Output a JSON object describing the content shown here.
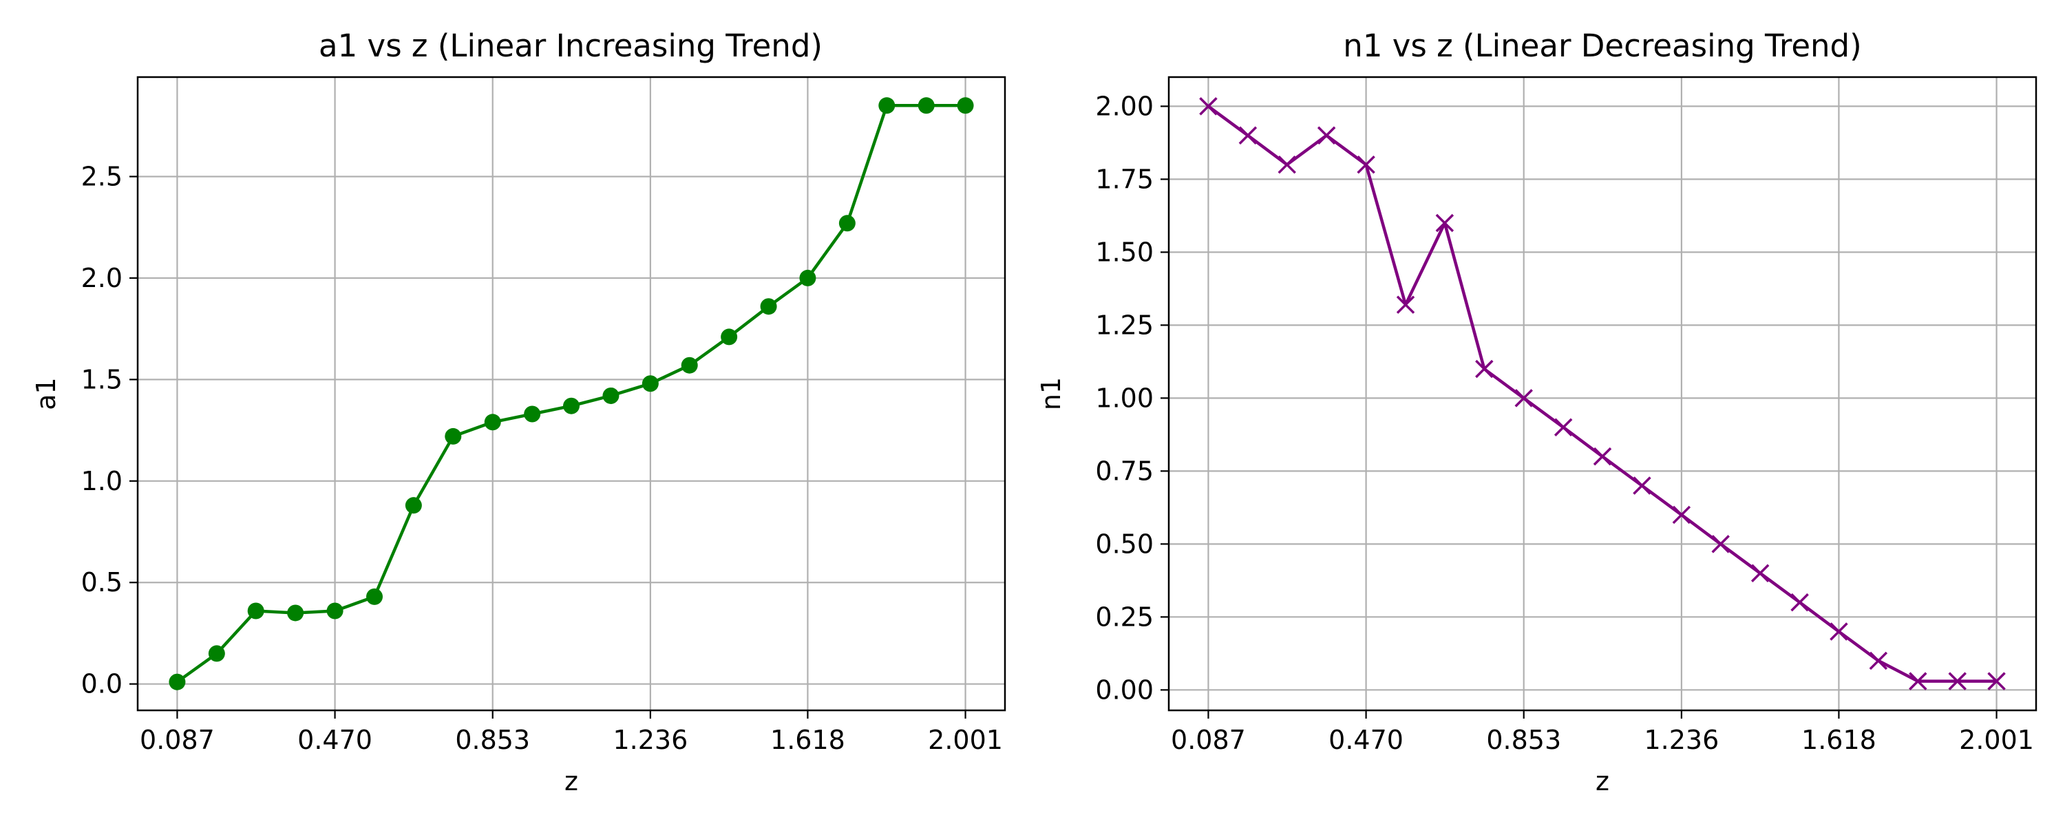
{
  "chart_data": [
    {
      "type": "line",
      "title": "a1 vs z (Linear Increasing Trend)",
      "xlabel": "z",
      "ylabel": "a1",
      "x": [
        0.087,
        0.183,
        0.278,
        0.374,
        0.47,
        0.566,
        0.661,
        0.757,
        0.853,
        0.949,
        1.044,
        1.14,
        1.236,
        1.331,
        1.427,
        1.523,
        1.618,
        1.714,
        1.81,
        1.906,
        2.001
      ],
      "series": [
        {
          "values": [
            0.01,
            0.15,
            0.36,
            0.35,
            0.36,
            0.43,
            0.88,
            1.22,
            1.29,
            1.33,
            1.37,
            1.42,
            1.48,
            1.57,
            1.71,
            1.86,
            2.0,
            2.27,
            2.85,
            2.85,
            2.85
          ],
          "color": "#008000",
          "marker": "circle"
        }
      ],
      "xticks": [
        0.087,
        0.47,
        0.853,
        1.236,
        1.618,
        2.001
      ],
      "xtick_labels": [
        "0.087",
        "0.470",
        "0.853",
        "1.236",
        "1.618",
        "2.001"
      ],
      "yticks": [
        0.0,
        0.5,
        1.0,
        1.5,
        2.0,
        2.5
      ],
      "ytick_labels": [
        "0.0",
        "0.5",
        "1.0",
        "1.5",
        "2.0",
        "2.5"
      ],
      "xlim": [
        -0.009,
        2.097
      ],
      "ylim": [
        -0.13,
        2.99
      ],
      "grid": true
    },
    {
      "type": "line",
      "title": "n1 vs z (Linear Decreasing Trend)",
      "xlabel": "z",
      "ylabel": "n1",
      "x": [
        0.087,
        0.183,
        0.278,
        0.374,
        0.47,
        0.566,
        0.661,
        0.757,
        0.853,
        0.949,
        1.044,
        1.14,
        1.236,
        1.331,
        1.427,
        1.523,
        1.618,
        1.714,
        1.81,
        1.906,
        2.001
      ],
      "series": [
        {
          "values": [
            2.0,
            1.9,
            1.8,
            1.9,
            1.8,
            1.32,
            1.6,
            1.1,
            1.0,
            0.9,
            0.8,
            0.7,
            0.6,
            0.5,
            0.4,
            0.3,
            0.2,
            0.1,
            0.03,
            0.03,
            0.03
          ],
          "color": "#800080",
          "marker": "x"
        }
      ],
      "xticks": [
        0.087,
        0.47,
        0.853,
        1.236,
        1.618,
        2.001
      ],
      "xtick_labels": [
        "0.087",
        "0.470",
        "0.853",
        "1.236",
        "1.618",
        "2.001"
      ],
      "yticks": [
        0.0,
        0.25,
        0.5,
        0.75,
        1.0,
        1.25,
        1.5,
        1.75,
        2.0
      ],
      "ytick_labels": [
        "0.00",
        "0.25",
        "0.50",
        "0.75",
        "1.00",
        "1.25",
        "1.50",
        "1.75",
        "2.00"
      ],
      "xlim": [
        -0.009,
        2.097
      ],
      "ylim": [
        -0.07,
        2.1
      ],
      "grid": true
    }
  ]
}
